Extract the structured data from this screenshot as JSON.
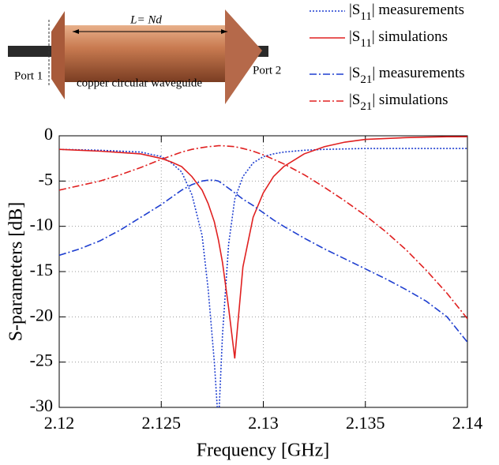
{
  "chart_data": {
    "type": "line",
    "x_label": "Frequency [GHz]",
    "y_label": "S-parameters [dB]",
    "annotations": [
      "L= Nd",
      "Port 1",
      "Port 2",
      "copper circular waveguide"
    ],
    "x": [
      2.12,
      2.121,
      2.122,
      2.123,
      2.124,
      2.125,
      2.1255,
      2.126,
      2.1265,
      2.127,
      2.1273,
      2.1276,
      2.1278,
      2.128,
      2.1283,
      2.1286,
      2.129,
      2.1295,
      2.13,
      2.1305,
      2.131,
      2.132,
      2.133,
      2.134,
      2.135,
      2.136,
      2.137,
      2.138,
      2.139,
      2.14
    ],
    "series": [
      {
        "name": "|S11| measurements",
        "color": "#1f3fd0",
        "linestyle": "dotted",
        "values": [
          -1.5,
          -1.55,
          -1.6,
          -1.7,
          -1.8,
          -2.3,
          -3,
          -4,
          -6.5,
          -11,
          -17,
          -25,
          -32,
          -22,
          -12,
          -7,
          -4.5,
          -3,
          -2.3,
          -2,
          -1.8,
          -1.6,
          -1.5,
          -1.45,
          -1.4,
          -1.4,
          -1.4,
          -1.4,
          -1.4,
          -1.4
        ]
      },
      {
        "name": "|S11| simulations",
        "color": "#e02020",
        "linestyle": "solid",
        "values": [
          -1.5,
          -1.6,
          -1.7,
          -1.85,
          -2,
          -2.5,
          -2.9,
          -3.4,
          -4.5,
          -6,
          -7.5,
          -9.5,
          -11.5,
          -14,
          -19,
          -24.6,
          -14.5,
          -9,
          -6.3,
          -4.5,
          -3.4,
          -2,
          -1.2,
          -0.7,
          -0.4,
          -0.3,
          -0.2,
          -0.15,
          -0.1,
          -0.1
        ]
      },
      {
        "name": "|S21| measurements",
        "color": "#1f3fd0",
        "linestyle": "dashdot",
        "values": [
          -13.2,
          -12.5,
          -11.6,
          -10.4,
          -9,
          -7.6,
          -6.8,
          -6,
          -5.4,
          -5,
          -4.9,
          -4.9,
          -5,
          -5.3,
          -5.8,
          -6.3,
          -7,
          -7.7,
          -8.5,
          -9.3,
          -10,
          -11.3,
          -12.5,
          -13.6,
          -14.7,
          -15.8,
          -17,
          -18.3,
          -20,
          -22.8
        ]
      },
      {
        "name": "|S21| simulations",
        "color": "#e02020",
        "linestyle": "dashdot",
        "values": [
          -6,
          -5.5,
          -5,
          -4.3,
          -3.5,
          -2.6,
          -2.2,
          -1.8,
          -1.5,
          -1.3,
          -1.2,
          -1.15,
          -1.1,
          -1.1,
          -1.15,
          -1.2,
          -1.4,
          -1.7,
          -2.1,
          -2.6,
          -3.1,
          -4.3,
          -5.7,
          -7.2,
          -8.8,
          -10.6,
          -12.6,
          -14.9,
          -17.4,
          -20.2
        ]
      }
    ],
    "xlim": [
      2.12,
      2.14
    ],
    "ylim": [
      -30,
      0
    ],
    "xticks": [
      2.12,
      2.125,
      2.13,
      2.135,
      2.14
    ],
    "yticks": [
      0,
      -5,
      -10,
      -15,
      -20,
      -25,
      -30
    ],
    "grid": true
  }
}
